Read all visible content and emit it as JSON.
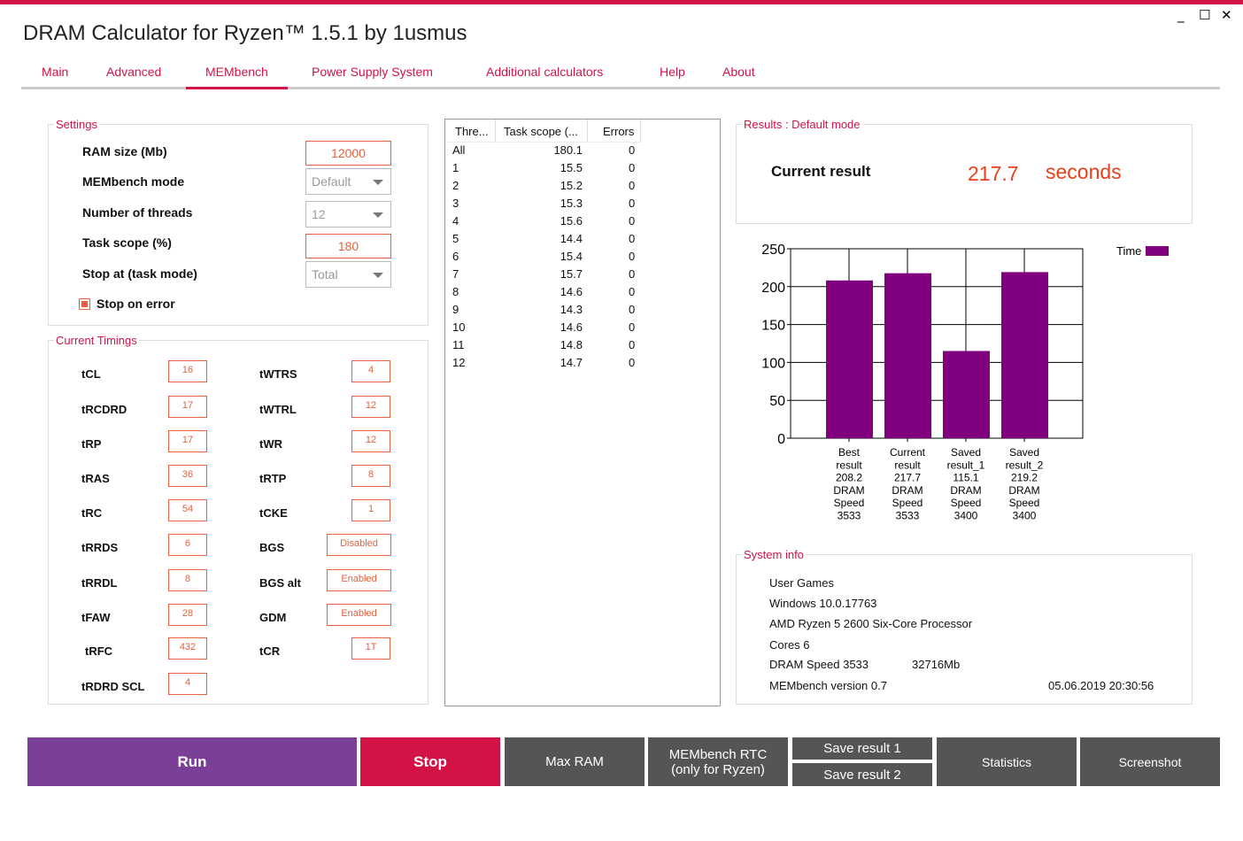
{
  "window": {
    "title": "DRAM Calculator for Ryzen™ 1.5.1 by 1usmus",
    "minimize": "_",
    "maximize": "☐",
    "close": "✕"
  },
  "tabs": [
    "Main",
    "Advanced",
    "MEMbench",
    "Power Supply System",
    "Additional calculators",
    "Help",
    "About"
  ],
  "settings": {
    "legend": "Settings",
    "ram_size_label": "RAM size (Mb)",
    "ram_size": "12000",
    "mode_label": "MEMbench mode",
    "mode": "Default",
    "threads_label": "Number of threads",
    "threads": "12",
    "scope_label": "Task scope (%)",
    "scope": "180",
    "stop_label": "Stop at (task mode)",
    "stop": "Total",
    "stop_on_error": "Stop on error"
  },
  "timings": {
    "legend": "Current Timings",
    "left": [
      [
        "tCL",
        "16"
      ],
      [
        "tRCDRD",
        "17"
      ],
      [
        "tRP",
        "17"
      ],
      [
        "tRAS",
        "36"
      ],
      [
        "tRC",
        "54"
      ],
      [
        "tRRDS",
        "6"
      ],
      [
        "tRRDL",
        "8"
      ],
      [
        "tFAW",
        "28"
      ],
      [
        "tRFC",
        "432"
      ],
      [
        "tRDRD SCL",
        "4"
      ]
    ],
    "right": [
      [
        "tWTRS",
        "4"
      ],
      [
        "tWTRL",
        "12"
      ],
      [
        "tWR",
        "12"
      ],
      [
        "tRTP",
        "8"
      ],
      [
        "tCKE",
        "1"
      ],
      [
        "BGS",
        "Disabled"
      ],
      [
        "BGS alt",
        "Enabled"
      ],
      [
        "GDM",
        "Enabled"
      ],
      [
        "tCR",
        "1T"
      ]
    ]
  },
  "threads_table": {
    "headers": [
      "Thre...",
      "Task scope (...",
      "Errors"
    ],
    "rows": [
      [
        "All",
        "180.1",
        "0"
      ],
      [
        "1",
        "15.5",
        "0"
      ],
      [
        "2",
        "15.2",
        "0"
      ],
      [
        "3",
        "15.3",
        "0"
      ],
      [
        "4",
        "15.6",
        "0"
      ],
      [
        "5",
        "14.4",
        "0"
      ],
      [
        "6",
        "15.4",
        "0"
      ],
      [
        "7",
        "15.7",
        "0"
      ],
      [
        "8",
        "14.6",
        "0"
      ],
      [
        "9",
        "14.3",
        "0"
      ],
      [
        "10",
        "14.6",
        "0"
      ],
      [
        "11",
        "14.8",
        "0"
      ],
      [
        "12",
        "14.7",
        "0"
      ]
    ]
  },
  "results": {
    "legend": "Results : Default mode",
    "label": "Current result",
    "value": "217.7",
    "unit": "seconds"
  },
  "chart_data": {
    "type": "bar",
    "ylim": [
      0,
      250
    ],
    "yticks": [
      "0",
      "50",
      "100",
      "150",
      "200",
      "250"
    ],
    "legend": "Time",
    "color": "#800080",
    "categories": [
      [
        "Best",
        "result",
        "208.2",
        "DRAM",
        "Speed",
        "3533"
      ],
      [
        "Current",
        "result",
        "217.7",
        "DRAM",
        "Speed",
        "3533"
      ],
      [
        "Saved",
        "result_1",
        "115.1",
        "DRAM",
        "Speed",
        "3400"
      ],
      [
        "Saved",
        "result_2",
        "219.2",
        "DRAM",
        "Speed",
        "3400"
      ]
    ],
    "values": [
      208.2,
      217.7,
      115.1,
      219.2
    ]
  },
  "system": {
    "legend": "System info",
    "user": "User Games",
    "os": "Windows 10.0.17763",
    "cpu": "AMD Ryzen 5 2600 Six-Core Processor",
    "cores": "Cores 6",
    "dram": "DRAM Speed 3533",
    "mem": "32716Mb",
    "version": "MEMbench version 0.7",
    "date": "05.06.2019 20:30:56"
  },
  "buttons": {
    "run": "Run",
    "stop": "Stop",
    "maxram": "Max RAM",
    "rtc1": "MEMbench RTC",
    "rtc2": "(only for Ryzen)",
    "save1": "Save result 1",
    "save2": "Save result 2",
    "stats": "Statistics",
    "screenshot": "Screenshot"
  }
}
